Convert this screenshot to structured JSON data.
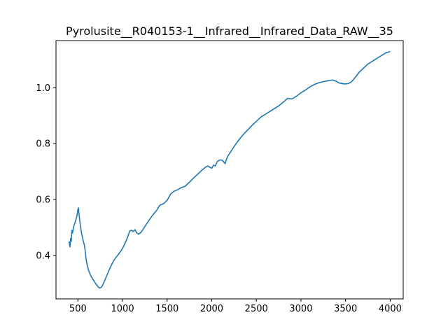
{
  "chart_data": {
    "type": "line",
    "title": "Pyrolusite__R040153-1__Infrared__Infrared_Data_RAW__35",
    "xlabel": "",
    "ylabel": "",
    "xlim": [
      254,
      4146
    ],
    "ylim": [
      0.244,
      1.169
    ],
    "x_ticks": [
      500,
      1000,
      1500,
      2000,
      2500,
      3000,
      3500,
      4000
    ],
    "x_tick_labels": [
      "500",
      "1000",
      "1500",
      "2000",
      "2500",
      "3000",
      "3500",
      "4000"
    ],
    "y_ticks": [
      0.4,
      0.6,
      0.8,
      1.0
    ],
    "y_tick_labels": [
      "0.4",
      "0.6",
      "0.8",
      "1.0"
    ],
    "grid": false,
    "legend": "none",
    "series_color": "#1f77b4",
    "series": [
      {
        "x": [
          400,
          410,
          418,
          425,
          432,
          440,
          450,
          460,
          470,
          480,
          490,
          500,
          505,
          510,
          515,
          520,
          530,
          540,
          550,
          560,
          570,
          580,
          590,
          600,
          620,
          640,
          660,
          680,
          700,
          720,
          740,
          760,
          780,
          800,
          820,
          840,
          860,
          880,
          900,
          920,
          950,
          980,
          1000,
          1020,
          1040,
          1060,
          1080,
          1100,
          1120,
          1140,
          1160,
          1180,
          1200,
          1230,
          1260,
          1300,
          1340,
          1380,
          1420,
          1460,
          1500,
          1540,
          1580,
          1620,
          1660,
          1700,
          1750,
          1800,
          1850,
          1900,
          1940,
          1960,
          1980,
          2000,
          2020,
          2040,
          2060,
          2080,
          2100,
          2120,
          2140,
          2150,
          2160,
          2180,
          2200,
          2240,
          2280,
          2320,
          2360,
          2400,
          2450,
          2500,
          2550,
          2600,
          2650,
          2700,
          2750,
          2800,
          2850,
          2900,
          2950,
          3000,
          3050,
          3100,
          3150,
          3200,
          3250,
          3300,
          3350,
          3380,
          3400,
          3420,
          3450,
          3480,
          3500,
          3530,
          3560,
          3590,
          3620,
          3650,
          3700,
          3750,
          3800,
          3850,
          3900,
          3950,
          3980,
          4000
        ],
        "y": [
          0.45,
          0.43,
          0.46,
          0.45,
          0.49,
          0.48,
          0.5,
          0.51,
          0.52,
          0.53,
          0.545,
          0.565,
          0.57,
          0.555,
          0.54,
          0.525,
          0.5,
          0.48,
          0.465,
          0.45,
          0.44,
          0.42,
          0.39,
          0.37,
          0.345,
          0.33,
          0.318,
          0.308,
          0.298,
          0.29,
          0.283,
          0.285,
          0.295,
          0.31,
          0.325,
          0.34,
          0.355,
          0.368,
          0.38,
          0.39,
          0.402,
          0.415,
          0.425,
          0.438,
          0.452,
          0.468,
          0.487,
          0.49,
          0.485,
          0.492,
          0.48,
          0.476,
          0.48,
          0.493,
          0.508,
          0.527,
          0.545,
          0.56,
          0.58,
          0.585,
          0.597,
          0.62,
          0.63,
          0.635,
          0.643,
          0.647,
          0.662,
          0.678,
          0.693,
          0.708,
          0.718,
          0.72,
          0.715,
          0.712,
          0.723,
          0.72,
          0.735,
          0.74,
          0.742,
          0.74,
          0.732,
          0.728,
          0.74,
          0.755,
          0.765,
          0.785,
          0.803,
          0.82,
          0.835,
          0.848,
          0.865,
          0.88,
          0.895,
          0.905,
          0.915,
          0.925,
          0.935,
          0.948,
          0.962,
          0.96,
          0.97,
          0.982,
          0.992,
          1.003,
          1.012,
          1.018,
          1.022,
          1.025,
          1.028,
          1.025,
          1.023,
          1.018,
          1.016,
          1.014,
          1.014,
          1.015,
          1.02,
          1.03,
          1.042,
          1.055,
          1.07,
          1.085,
          1.095,
          1.105,
          1.115,
          1.125,
          1.128,
          1.13
        ]
      }
    ]
  }
}
